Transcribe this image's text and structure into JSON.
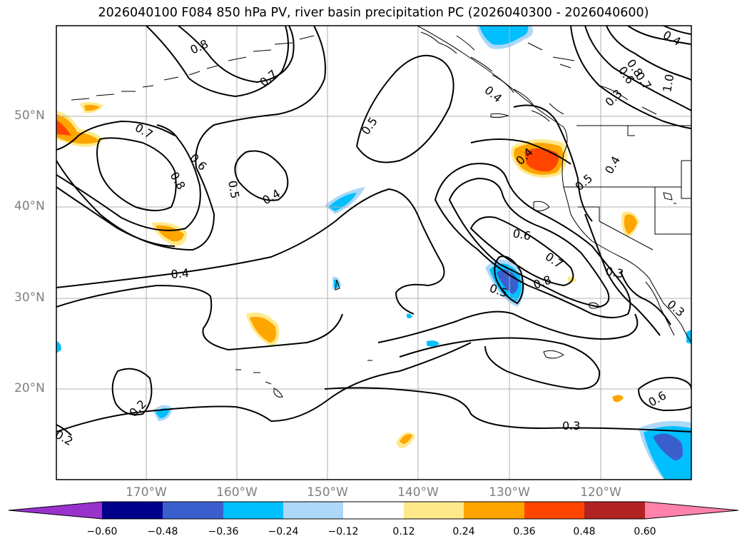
{
  "title": "2026040100 F084 850 hPa PV, river basin precipitation PC (2026040300 - 2026040600)",
  "latitude_labels": [
    "50°N",
    "40°N",
    "30°N",
    "20°N"
  ],
  "longitude_labels": [
    "170°W",
    "160°W",
    "150°W",
    "140°W",
    "130°W",
    "120°W"
  ],
  "contour_labels": [
    "0.8",
    "0.7",
    "0.7",
    "0.6",
    "0.8",
    "0.5",
    "0.4",
    "0.5",
    "0.4",
    "0.4",
    "0.5",
    "0.4",
    "0.6",
    "0.7",
    "0.8",
    "0.5",
    "0.3",
    "0.3",
    "0.6",
    "0.3",
    "0.2",
    "0.2",
    "0.4",
    "0.8",
    "0.6",
    "0.7",
    "1.0",
    "0.3",
    "0.4"
  ],
  "colorbar": {
    "tick_labels": [
      "−0.60",
      "−0.48",
      "−0.36",
      "−0.24",
      "−0.12",
      "0.12",
      "0.24",
      "0.36",
      "0.48",
      "0.60"
    ],
    "colors": [
      "#9932cc",
      "#00008b",
      "#3a5fcd",
      "#00bfff",
      "#add8f7",
      "#ffffff",
      "#ffe98a",
      "#ffa500",
      "#ff4500",
      "#b22222",
      "#ff82ab"
    ]
  },
  "map_colors": {
    "land_outline": "#000000",
    "gridlines": "#b0b0b0",
    "contour": "#000000"
  }
}
